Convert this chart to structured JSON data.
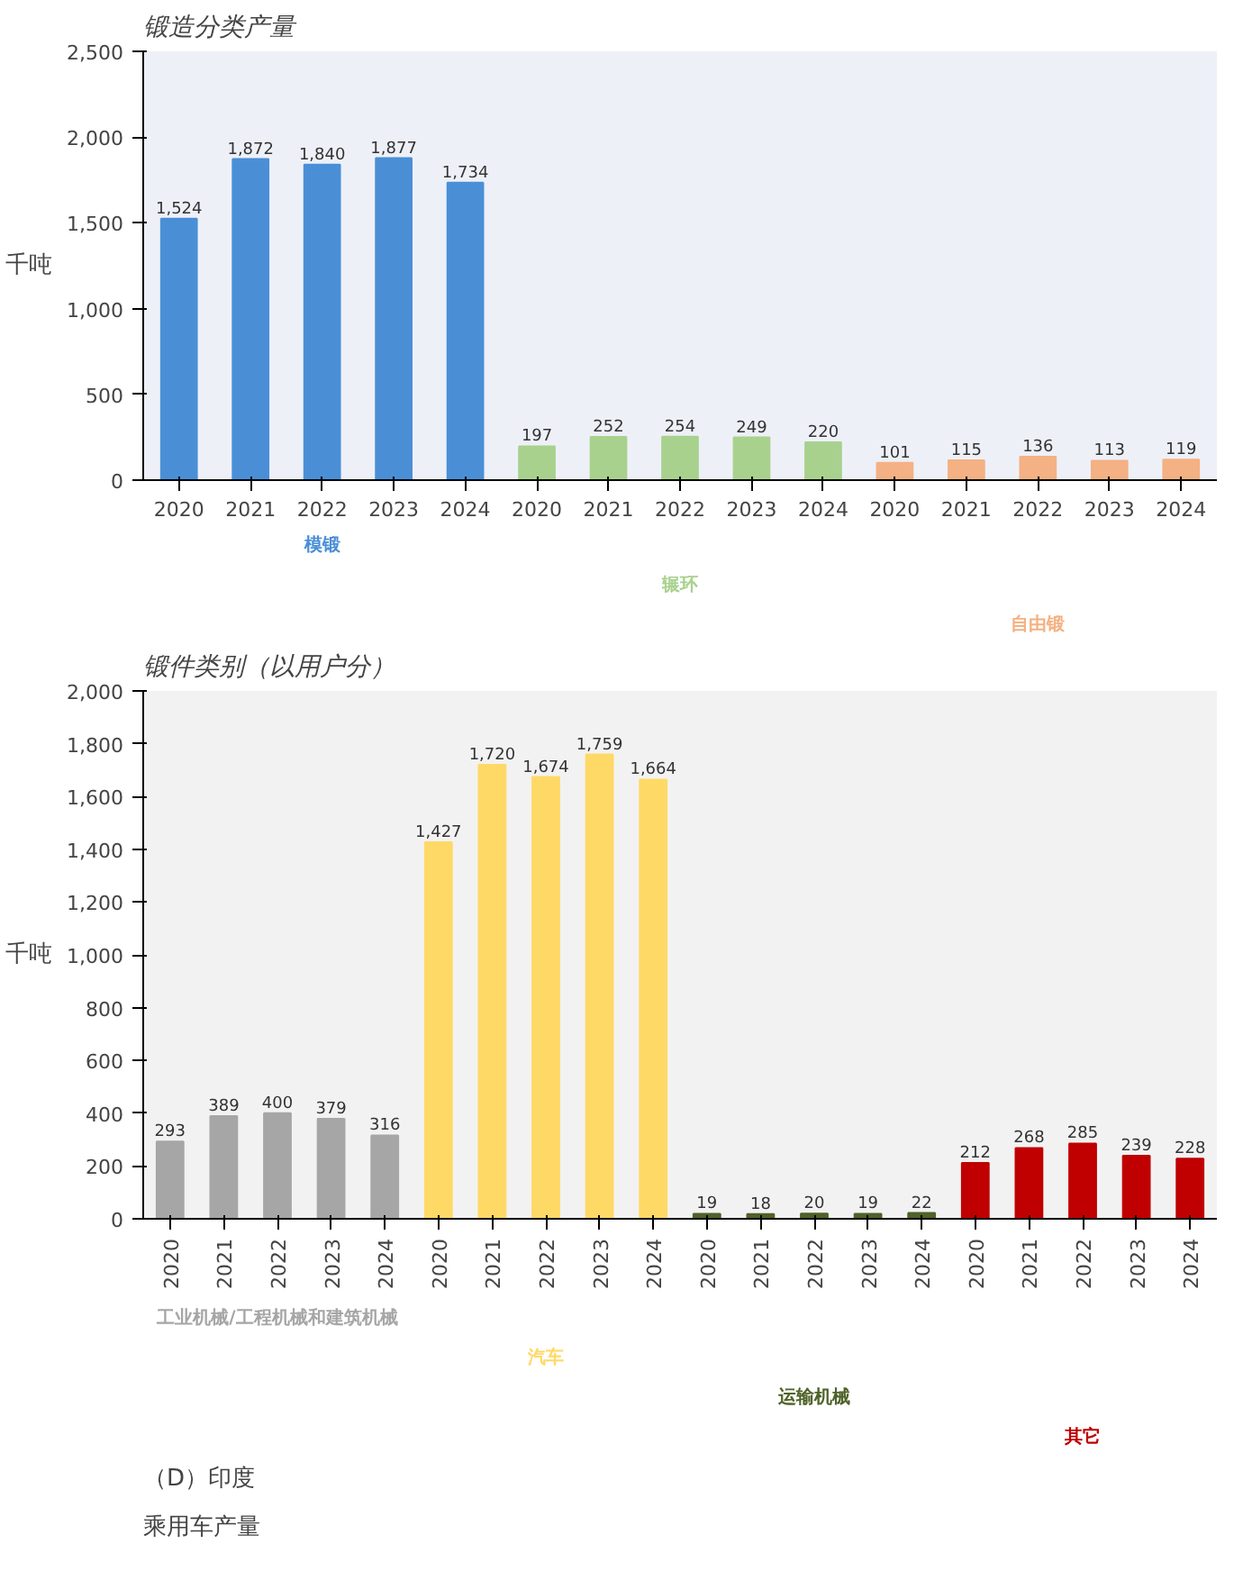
{
  "chart_data": [
    {
      "type": "bar",
      "title": "锻造分类产量",
      "ylabel": "千吨",
      "categories": [
        "2020",
        "2021",
        "2022",
        "2023",
        "2024",
        "2020",
        "2021",
        "2022",
        "2023",
        "2024",
        "2020",
        "2021",
        "2022",
        "2023",
        "2024"
      ],
      "series": [
        {
          "name": "模锻",
          "color": "#4a8fd6",
          "values": [
            1524,
            1872,
            1840,
            1877,
            1734,
            null,
            null,
            null,
            null,
            null,
            null,
            null,
            null,
            null,
            null
          ],
          "value_labels": [
            "1,524",
            "1,872",
            "1,840",
            "1,877",
            "1,734",
            null,
            null,
            null,
            null,
            null,
            null,
            null,
            null,
            null,
            null
          ]
        },
        {
          "name": "辗环",
          "color": "#a9d18e",
          "values": [
            null,
            null,
            null,
            null,
            null,
            197,
            252,
            254,
            249,
            220,
            null,
            null,
            null,
            null,
            null
          ]
        },
        {
          "name": "自由锻",
          "color": "#f4b183",
          "values": [
            null,
            null,
            null,
            null,
            null,
            null,
            null,
            null,
            null,
            null,
            101,
            115,
            136,
            113,
            119
          ]
        }
      ],
      "ylim": [
        0,
        2500
      ],
      "yticks": [
        0,
        500,
        {
          "value": 1000,
          "label": "1,000"
        },
        {
          "value": 1500,
          "label": "1,500"
        },
        {
          "value": 2000,
          "label": "2,000"
        },
        {
          "value": 2500,
          "label": "2,500"
        }
      ],
      "data_labels": true,
      "grid": false
    },
    {
      "type": "bar",
      "title": "锻件类别（以用户分）",
      "ylabel": "千吨",
      "categories": [
        "2020",
        "2021",
        "2022",
        "2023",
        "2024",
        "2020",
        "2021",
        "2022",
        "2023",
        "2024",
        "2020",
        "2021",
        "2022",
        "2023",
        "2024",
        "2020",
        "2021",
        "2022",
        "2023",
        "2024"
      ],
      "series": [
        {
          "name": "工业机械/工程机械和建筑机械",
          "color": "#a6a6a6",
          "values": [
            293,
            389,
            400,
            379,
            316,
            null,
            null,
            null,
            null,
            null,
            null,
            null,
            null,
            null,
            null,
            null,
            null,
            null,
            null,
            null
          ]
        },
        {
          "name": "汽车",
          "color": "#ffd966",
          "values": [
            null,
            null,
            null,
            null,
            null,
            1427,
            1720,
            1674,
            1759,
            1664,
            null,
            null,
            null,
            null,
            null,
            null,
            null,
            null,
            null,
            null
          ],
          "value_labels": [
            null,
            null,
            null,
            null,
            null,
            "1,427",
            "1,720",
            "1,674",
            "1,759",
            "1,664",
            null,
            null,
            null,
            null,
            null,
            null,
            null,
            null,
            null,
            null
          ]
        },
        {
          "name": "运输机械",
          "color": "#4f6228",
          "values": [
            null,
            null,
            null,
            null,
            null,
            null,
            null,
            null,
            null,
            null,
            19,
            18,
            20,
            19,
            22,
            null,
            null,
            null,
            null,
            null
          ]
        },
        {
          "name": "其它",
          "color": "#c00000",
          "values": [
            null,
            null,
            null,
            null,
            null,
            null,
            null,
            null,
            null,
            null,
            null,
            null,
            null,
            null,
            null,
            212,
            268,
            285,
            239,
            228
          ]
        }
      ],
      "ylim": [
        0,
        2000
      ],
      "yticks": [
        0,
        200,
        400,
        600,
        800,
        {
          "value": 1000,
          "label": "1,000"
        },
        {
          "value": 1200,
          "label": "1,200"
        },
        {
          "value": 1400,
          "label": "1,400"
        },
        {
          "value": 1600,
          "label": "1,600"
        },
        {
          "value": 1800,
          "label": "1,800"
        },
        {
          "value": 2000,
          "label": "2,000"
        }
      ],
      "data_labels": true,
      "grid": false,
      "annotations": [
        "（D）印度",
        "乘用车产量"
      ]
    }
  ]
}
